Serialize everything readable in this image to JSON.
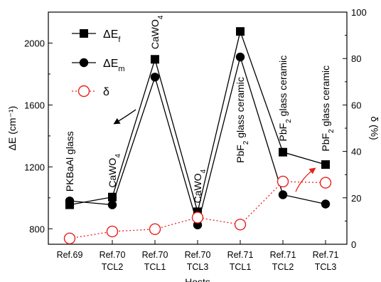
{
  "chart_data": {
    "type": "line",
    "xlabel": "Hosts",
    "ylabel": "ΔE (cm⁻¹)",
    "y2label": "δ (%)",
    "ylim": [
      700,
      2200
    ],
    "y2lim": [
      0,
      100
    ],
    "yticks": [
      800,
      1200,
      1600,
      2000
    ],
    "y2ticks": [
      0,
      20,
      40,
      60,
      80,
      100
    ],
    "categories": [
      [
        "Ref.69",
        ""
      ],
      [
        "Ref.70",
        "TCL2"
      ],
      [
        "Ref.70",
        "TCL1"
      ],
      [
        "Ref.70",
        "TCL3"
      ],
      [
        "Ref.71",
        "TCL1"
      ],
      [
        "Ref.71",
        "TCL2"
      ],
      [
        "Ref.71",
        "TCL3"
      ]
    ],
    "series": [
      {
        "name": "ΔEf",
        "axis": "left",
        "marker": "square",
        "line": "solid",
        "values": [
          955,
          1005,
          1895,
          910,
          2075,
          1295,
          1215
        ]
      },
      {
        "name": "ΔEm",
        "axis": "left",
        "marker": "circle",
        "line": "solid",
        "values": [
          980,
          955,
          1780,
          825,
          1910,
          1020,
          960
        ]
      },
      {
        "name": "δ",
        "axis": "right",
        "marker": "open-circle",
        "line": "dotted",
        "color": "#e8211c",
        "values": [
          2.5,
          5.5,
          6.5,
          11.5,
          8.5,
          27.0,
          26.5
        ]
      }
    ],
    "legend": {
      "placement": "top-left",
      "items": [
        {
          "main": "ΔE",
          "sub": "f"
        },
        {
          "main": "ΔE",
          "sub": "m"
        },
        {
          "main": "δ",
          "sub": ""
        }
      ]
    },
    "annotations": [
      {
        "text": "PKBaAl glass",
        "sub": "",
        "suffix": "",
        "x": 0,
        "y": 1040,
        "axis": "left"
      },
      {
        "text": "CaWO",
        "sub": "4",
        "suffix": "",
        "x": 1,
        "y": 1065,
        "axis": "left"
      },
      {
        "text": "CaWO",
        "sub": "4",
        "suffix": "",
        "x": 2,
        "y": 1960,
        "axis": "left"
      },
      {
        "text": "CaWO",
        "sub": "4",
        "suffix": "",
        "x": 3,
        "y": 965,
        "axis": "left"
      },
      {
        "text": "PbF",
        "sub": "2",
        "suffix": " glass ceramic",
        "x": 4,
        "y": 1225,
        "axis": "left"
      },
      {
        "text": "PbF",
        "sub": "2",
        "suffix": " glass ceramic",
        "x": 5,
        "y": 1365,
        "axis": "left"
      },
      {
        "text": "PbF",
        "sub": "2",
        "suffix": " glass ceramic",
        "x": 6,
        "y": 1300,
        "axis": "left"
      }
    ],
    "arrows": [
      {
        "points": [
          [
            1.55,
            1570
          ],
          [
            1.35,
            1530
          ],
          [
            1.05,
            1480
          ]
        ],
        "head": true
      },
      {
        "points": [
          [
            5.3,
            1040
          ],
          [
            5.45,
            1130
          ],
          [
            5.75,
            1190
          ]
        ],
        "head": true,
        "color": "#e8211c"
      }
    ]
  }
}
